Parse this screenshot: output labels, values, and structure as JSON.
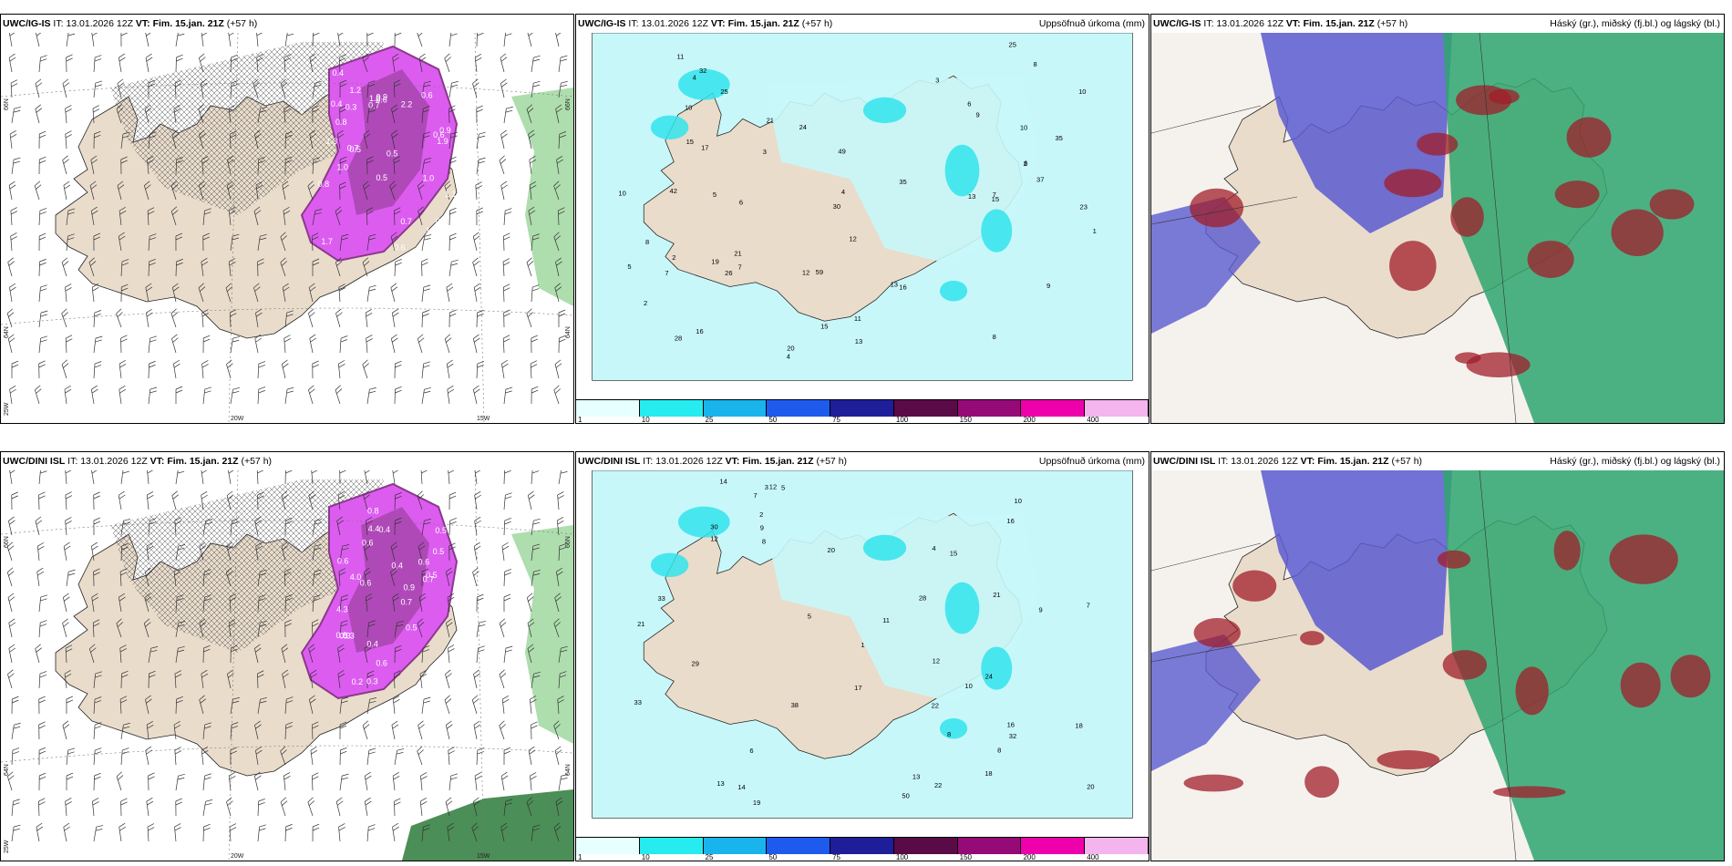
{
  "panels": [
    {
      "model": "UWC/IG-IS",
      "it_label": "IT:",
      "it": "13.01.2026 12Z",
      "vt_label": "VT:",
      "vt": "Fim. 15.jan. 21Z",
      "lead": "(+57 h)",
      "right_title": "",
      "type": "windsnow",
      "axis": {
        "lat_top": "66N",
        "lat_mid": "64N",
        "lon_left": "20W",
        "lon_right": "15W",
        "lon_corner": "25W",
        "right_lat_top": "66N",
        "right_lat_mid": "64N"
      },
      "labels": [
        "0.3",
        "0.5",
        "0.7",
        "1.1",
        "1.2",
        "0.5",
        "0.9",
        "0.8",
        "1.0",
        "1.7",
        "0.4",
        "0.6",
        "1.3",
        "2.2",
        "1.9",
        "0.5",
        "0.8",
        "0.6",
        "1.0",
        "0.7",
        "0.5",
        "0.4",
        "0.6",
        "1.2",
        "0.7",
        "1.6",
        "0.9",
        "0.6"
      ]
    },
    {
      "model": "UWC/IG-IS",
      "it_label": "IT:",
      "it": "13.01.2026 12Z",
      "vt_label": "VT:",
      "vt": "Fim. 15.jan. 21Z",
      "lead": "(+57 h)",
      "right_title": "Uppsöfnuð úrkoma (mm)",
      "type": "precip",
      "labels": [
        "13",
        "8",
        "7",
        "12",
        "11",
        "24",
        "30",
        "19",
        "59",
        "23",
        "26",
        "25",
        "20",
        "35",
        "28",
        "10",
        "16",
        "49",
        "42",
        "35",
        "13",
        "10",
        "21",
        "15",
        "12",
        "9",
        "15",
        "17",
        "8",
        "10",
        "6",
        "13",
        "4",
        "6",
        "2",
        "3",
        "4",
        "8",
        "5",
        "4",
        "3",
        "2",
        "1",
        "6",
        "7",
        "2",
        "32",
        "11",
        "10",
        "9",
        "7",
        "16",
        "21",
        "25",
        "37",
        "5",
        "15"
      ]
    },
    {
      "model": "UWC/IG-IS",
      "it_label": "IT:",
      "it": "13.01.2026 12Z",
      "vt_label": "VT:",
      "vt": "Fim. 15.jan. 21Z",
      "lead": "(+57 h)",
      "right_title": "Háský (gr.), miðský (fj.bl.) og lágský (bl.)",
      "type": "clouds"
    },
    {
      "model": "UWC/DINI ISL",
      "it_label": "IT:",
      "it": "13.01.2026 12Z",
      "vt_label": "VT:",
      "vt": "Fim. 15.jan. 21Z",
      "lead": "(+57 h)",
      "right_title": "",
      "type": "windsnow",
      "axis": {
        "lat_top": "66N",
        "lat_mid": "64N",
        "lon_left": "20W",
        "lon_right": "15W",
        "lon_corner": "25W",
        "right_lat_top": "66N",
        "right_lat_mid": "64N"
      },
      "labels": [
        "0.3",
        "0.5",
        "0.2",
        "0.8",
        "0.9",
        "0.6",
        "0.5",
        "0.7",
        "0.4",
        "0.3",
        "0.8",
        "0.6",
        "0.5",
        "0.4",
        "0.7",
        "0.6",
        "0.3",
        "0.5",
        "0.4",
        "0.6",
        "4.3",
        "4.0",
        "4.4",
        "0.6"
      ]
    },
    {
      "model": "UWC/DINI ISL",
      "it_label": "IT:",
      "it": "13.01.2026 12Z",
      "vt_label": "VT:",
      "vt": "Fim. 15.jan. 21Z",
      "lead": "(+57 h)",
      "right_title": "Uppsöfnuð úrkoma (mm)",
      "type": "precip",
      "labels": [
        "20",
        "18",
        "21",
        "8",
        "12",
        "22",
        "32",
        "19",
        "28",
        "29",
        "38",
        "33",
        "21",
        "24",
        "14",
        "16",
        "10",
        "17",
        "8",
        "9",
        "13",
        "12",
        "14",
        "15",
        "10",
        "7",
        "6",
        "5",
        "3",
        "2",
        "1",
        "4",
        "33",
        "11",
        "22",
        "20",
        "16",
        "12",
        "8",
        "13",
        "7",
        "5",
        "9",
        "18",
        "50",
        "30"
      ]
    },
    {
      "model": "UWC/DINI ISL",
      "it_label": "IT:",
      "it": "13.01.2026 12Z",
      "vt_label": "VT:",
      "vt": "Fim. 15.jan. 21Z",
      "lead": "(+57 h)",
      "right_title": "Háský (gr.), miðský (fj.bl.) og lágský (bl.)",
      "type": "clouds"
    }
  ],
  "colorbar": {
    "ticks": [
      "1",
      "10",
      "25",
      "50",
      "75",
      "100",
      "150",
      "200",
      "400"
    ],
    "colors": [
      "#e6ffff",
      "#26ecf0",
      "#19b4ec",
      "#1e5aee",
      "#1e1e9a",
      "#5a0a46",
      "#960a78",
      "#ee00aa",
      "#f4b4ee"
    ]
  },
  "colors": {
    "land": "#e9dccb",
    "snow_purple": "#dc5cf0",
    "snow_dark": "#8a3a8a",
    "precip_light": "#c8f7fa",
    "precip_cyan": "#31e4ec",
    "high_cloud": "#2ea66e",
    "mid_cloud": "#5a5ad0",
    "low_cloud": "#a01e2a"
  }
}
